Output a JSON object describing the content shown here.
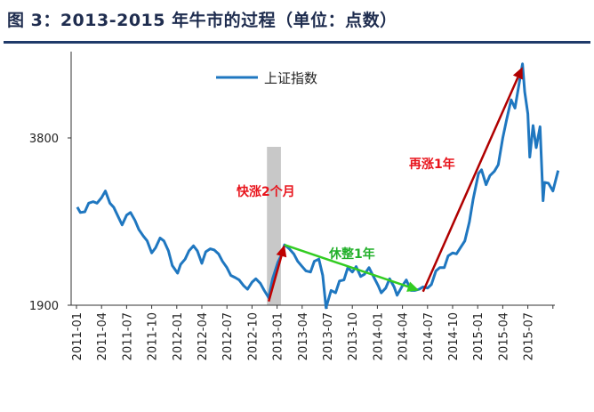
{
  "title": "图 3：2013-2015 年牛市的过程（单位：点数）",
  "chart_data": {
    "type": "line",
    "title": "图 3：2013-2015 年牛市的过程（单位：点数）",
    "xlabel": "",
    "ylabel": "",
    "y_scale": "log",
    "ylim": [
      1900,
      5300
    ],
    "y_ticks": [
      1900,
      3800
    ],
    "x_tick_labels": [
      "2011-01",
      "2011-04",
      "2011-07",
      "2011-10",
      "2012-01",
      "2012-04",
      "2012-07",
      "2012-10",
      "2013-01",
      "2013-04",
      "2013-07",
      "2013-10",
      "2014-01",
      "2014-04",
      "2014-07",
      "2014-10",
      "2015-01",
      "2015-04",
      "2015-07"
    ],
    "grid": false,
    "legend_position": "top-center",
    "series": [
      {
        "name": "上证指数",
        "color": "#1f77c0",
        "points": [
          [
            "2011-01-04",
            2853
          ],
          [
            "2011-01-15",
            2790
          ],
          [
            "2011-02-01",
            2798
          ],
          [
            "2011-02-15",
            2900
          ],
          [
            "2011-03-01",
            2918
          ],
          [
            "2011-03-15",
            2900
          ],
          [
            "2011-04-01",
            2967
          ],
          [
            "2011-04-15",
            3050
          ],
          [
            "2011-05-01",
            2900
          ],
          [
            "2011-05-15",
            2850
          ],
          [
            "2011-06-01",
            2740
          ],
          [
            "2011-06-15",
            2650
          ],
          [
            "2011-07-01",
            2760
          ],
          [
            "2011-07-15",
            2790
          ],
          [
            "2011-08-01",
            2700
          ],
          [
            "2011-08-15",
            2600
          ],
          [
            "2011-09-01",
            2530
          ],
          [
            "2011-09-15",
            2480
          ],
          [
            "2011-10-01",
            2360
          ],
          [
            "2011-10-15",
            2410
          ],
          [
            "2011-11-01",
            2510
          ],
          [
            "2011-11-15",
            2480
          ],
          [
            "2011-12-01",
            2380
          ],
          [
            "2011-12-15",
            2240
          ],
          [
            "2012-01-04",
            2170
          ],
          [
            "2012-01-15",
            2250
          ],
          [
            "2012-02-01",
            2300
          ],
          [
            "2012-02-15",
            2380
          ],
          [
            "2012-03-01",
            2430
          ],
          [
            "2012-03-15",
            2380
          ],
          [
            "2012-04-01",
            2260
          ],
          [
            "2012-04-15",
            2370
          ],
          [
            "2012-05-01",
            2400
          ],
          [
            "2012-05-15",
            2390
          ],
          [
            "2012-06-01",
            2350
          ],
          [
            "2012-06-15",
            2280
          ],
          [
            "2012-07-01",
            2220
          ],
          [
            "2012-07-15",
            2150
          ],
          [
            "2012-08-01",
            2130
          ],
          [
            "2012-08-15",
            2110
          ],
          [
            "2012-09-01",
            2060
          ],
          [
            "2012-09-15",
            2030
          ],
          [
            "2012-10-01",
            2090
          ],
          [
            "2012-10-15",
            2120
          ],
          [
            "2012-11-01",
            2080
          ],
          [
            "2012-11-15",
            2020
          ],
          [
            "2012-12-01",
            1960
          ],
          [
            "2012-12-15",
            2120
          ],
          [
            "2013-01-04",
            2270
          ],
          [
            "2013-01-15",
            2330
          ],
          [
            "2013-01-28",
            2440
          ],
          [
            "2013-02-15",
            2400
          ],
          [
            "2013-03-01",
            2350
          ],
          [
            "2013-03-15",
            2280
          ],
          [
            "2013-04-01",
            2230
          ],
          [
            "2013-04-15",
            2190
          ],
          [
            "2013-05-01",
            2180
          ],
          [
            "2013-05-15",
            2280
          ],
          [
            "2013-06-01",
            2300
          ],
          [
            "2013-06-15",
            2150
          ],
          [
            "2013-06-27",
            1880
          ],
          [
            "2013-07-15",
            2020
          ],
          [
            "2013-08-01",
            2000
          ],
          [
            "2013-08-15",
            2100
          ],
          [
            "2013-09-01",
            2110
          ],
          [
            "2013-09-15",
            2220
          ],
          [
            "2013-10-01",
            2180
          ],
          [
            "2013-10-15",
            2230
          ],
          [
            "2013-11-01",
            2140
          ],
          [
            "2013-11-15",
            2160
          ],
          [
            "2013-12-01",
            2220
          ],
          [
            "2013-12-15",
            2150
          ],
          [
            "2014-01-04",
            2060
          ],
          [
            "2014-01-15",
            2000
          ],
          [
            "2014-02-01",
            2040
          ],
          [
            "2014-02-15",
            2120
          ],
          [
            "2014-03-01",
            2050
          ],
          [
            "2014-03-12",
            1980
          ],
          [
            "2014-04-01",
            2060
          ],
          [
            "2014-04-15",
            2110
          ],
          [
            "2014-05-01",
            2020
          ],
          [
            "2014-05-15",
            2020
          ],
          [
            "2014-06-01",
            2030
          ],
          [
            "2014-06-15",
            2050
          ],
          [
            "2014-07-01",
            2040
          ],
          [
            "2014-07-15",
            2070
          ],
          [
            "2014-08-01",
            2190
          ],
          [
            "2014-08-15",
            2220
          ],
          [
            "2014-09-01",
            2220
          ],
          [
            "2014-09-15",
            2330
          ],
          [
            "2014-10-01",
            2360
          ],
          [
            "2014-10-15",
            2350
          ],
          [
            "2014-11-01",
            2420
          ],
          [
            "2014-11-15",
            2480
          ],
          [
            "2014-12-01",
            2680
          ],
          [
            "2014-12-15",
            2950
          ],
          [
            "2015-01-04",
            3280
          ],
          [
            "2015-01-15",
            3330
          ],
          [
            "2015-02-01",
            3130
          ],
          [
            "2015-02-15",
            3250
          ],
          [
            "2015-03-01",
            3310
          ],
          [
            "2015-03-15",
            3400
          ],
          [
            "2015-04-01",
            3800
          ],
          [
            "2015-04-15",
            4100
          ],
          [
            "2015-05-01",
            4450
          ],
          [
            "2015-05-15",
            4300
          ],
          [
            "2015-06-01",
            4800
          ],
          [
            "2015-06-12",
            5166
          ],
          [
            "2015-06-20",
            4600
          ],
          [
            "2015-07-01",
            4200
          ],
          [
            "2015-07-08",
            3510
          ],
          [
            "2015-07-20",
            4000
          ],
          [
            "2015-08-01",
            3650
          ],
          [
            "2015-08-15",
            3980
          ],
          [
            "2015-08-26",
            2930
          ],
          [
            "2015-09-01",
            3160
          ],
          [
            "2015-09-15",
            3150
          ],
          [
            "2015-10-01",
            3050
          ],
          [
            "2015-10-20",
            3320
          ]
        ]
      }
    ],
    "shaded_band": {
      "from": "2012-11-25",
      "to": "2013-01-15",
      "color": "#c8c8c8"
    },
    "annotations": [
      {
        "text": "快涨2个月",
        "color": "#e8141c",
        "arrow_from": [
          "2012-12-01",
          1930
        ],
        "arrow_to": [
          "2013-01-28",
          2440
        ],
        "arrow_color": "#c00000"
      },
      {
        "text": "休整1年",
        "color": "#22b02a",
        "arrow_from": [
          "2013-01-28",
          2440
        ],
        "arrow_to": [
          "2014-06-01",
          2020
        ],
        "arrow_color": "#33cc22"
      },
      {
        "text": "再涨1年",
        "color": "#e8141c",
        "arrow_from": [
          "2014-06-15",
          2010
        ],
        "arrow_to": [
          "2015-06-12",
          5100
        ],
        "arrow_color": "#b00000"
      }
    ]
  }
}
